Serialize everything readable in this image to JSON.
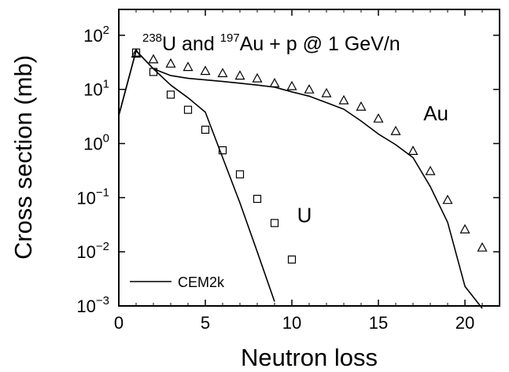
{
  "chart_data": {
    "type": "scatter",
    "title_parts": {
      "u_mass": "238",
      "u_sym": "U and ",
      "au_mass": "197",
      "au_sym": "Au + p @ 1 GeV/n"
    },
    "xlabel": "Neutron loss",
    "ylabel": "Cross section (mb)",
    "xlim": [
      0,
      22
    ],
    "ylim": [
      0.001,
      300
    ],
    "yscale": "log",
    "x_ticks": [
      {
        "value": 0,
        "label": "0"
      },
      {
        "value": 5,
        "label": "5"
      },
      {
        "value": 10,
        "label": "10"
      },
      {
        "value": 15,
        "label": "15"
      },
      {
        "value": 20,
        "label": "20"
      }
    ],
    "y_ticks": [
      {
        "value": 100,
        "base": "10",
        "exp": "2"
      },
      {
        "value": 10,
        "base": "10",
        "exp": "1"
      },
      {
        "value": 1,
        "base": "10",
        "exp": "0"
      },
      {
        "value": 0.1,
        "base": "10",
        "exp": "−1"
      },
      {
        "value": 0.01,
        "base": "10",
        "exp": "−2"
      },
      {
        "value": 0.001,
        "base": "10",
        "exp": "−3"
      }
    ],
    "grid": false,
    "legend_position": "bottom-left",
    "series": [
      {
        "name": "U",
        "kind": "points",
        "marker": "square",
        "x": [
          1,
          2,
          3,
          4,
          5,
          6,
          7,
          8,
          9,
          10
        ],
        "y": [
          48,
          21,
          8,
          4.2,
          1.8,
          0.75,
          0.27,
          0.095,
          0.034,
          0.0072
        ]
      },
      {
        "name": "Au",
        "kind": "points",
        "marker": "triangle",
        "x": [
          1,
          2,
          3,
          4,
          5,
          6,
          7,
          8,
          9,
          10,
          11,
          12,
          13,
          14,
          15,
          16,
          17,
          18,
          19,
          20,
          21
        ],
        "y": [
          46,
          36,
          30,
          26,
          22,
          20,
          18,
          16,
          13,
          11.5,
          10,
          8.5,
          6.3,
          4.8,
          2.9,
          1.7,
          0.73,
          0.31,
          0.091,
          0.026,
          0.012
        ]
      },
      {
        "name": "CEM2k",
        "kind": "line",
        "x": [
          0,
          1,
          2,
          3,
          4,
          5,
          6,
          7,
          8,
          9
        ],
        "y": [
          3.3,
          52,
          24,
          12,
          7,
          3.8,
          0.55,
          0.08,
          0.01,
          0.0012
        ]
      },
      {
        "name": "CEM2k",
        "kind": "line",
        "x": [
          0,
          1,
          2,
          3,
          4,
          5,
          6,
          7,
          8,
          9,
          10,
          11,
          12,
          13,
          14,
          15,
          16,
          17,
          18,
          19,
          20,
          21
        ],
        "y": [
          3.3,
          52,
          24,
          18,
          16,
          15,
          14,
          13,
          12,
          11,
          9,
          7.5,
          5.7,
          4.3,
          2.6,
          1.5,
          0.95,
          0.55,
          0.16,
          0.035,
          0.0023,
          0.0009
        ]
      }
    ],
    "annotations": [
      {
        "text": "U",
        "x": 10.3,
        "y": 0.035
      },
      {
        "text": "Au",
        "x": 17.6,
        "y": 2.7
      }
    ],
    "legend_label": "CEM2k"
  }
}
